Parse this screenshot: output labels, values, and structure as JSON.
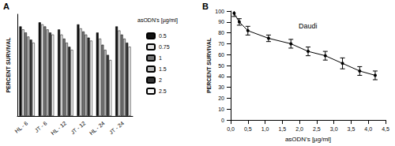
{
  "chart_data": [
    {
      "type": "bar",
      "annotations": [
        "A"
      ],
      "ylabel": "PERCENT SURVIVAL",
      "series_label": "asODN's [µg/ml]",
      "categories": [
        "HL - 6",
        "JT - 6",
        "HL - 12",
        "JT - 12",
        "HL - 24",
        "JT - 24"
      ],
      "series": [
        {
          "name": "0.5",
          "color": "#111111",
          "values": [
            88,
            92,
            85,
            90,
            82,
            88
          ]
        },
        {
          "name": "0.75",
          "color": "#e6e6e6",
          "values": [
            85,
            90,
            80,
            86,
            76,
            84
          ]
        },
        {
          "name": "1",
          "color": "#777777",
          "values": [
            82,
            88,
            76,
            83,
            70,
            80
          ]
        },
        {
          "name": "1.5",
          "color": "#bbbbbb",
          "values": [
            78,
            85,
            72,
            80,
            65,
            76
          ]
        },
        {
          "name": "2",
          "color": "#333333",
          "values": [
            75,
            82,
            68,
            77,
            60,
            72
          ]
        },
        {
          "name": "2.5",
          "color": "#f7f7f7",
          "values": [
            72,
            80,
            65,
            74,
            55,
            68
          ]
        }
      ],
      "ylim": [
        0,
        100
      ],
      "tick_labels": "x"
    },
    {
      "type": "line",
      "annotations": [
        "B"
      ],
      "title": "Daudi",
      "xlabel": "asODN's [µg/ml]",
      "ylabel": "PERCENT SURVIVAL",
      "x": [
        0.1,
        0.25,
        0.5,
        1.1,
        1.75,
        2.25,
        2.75,
        3.25,
        3.75,
        4.2
      ],
      "values": [
        98,
        90,
        82,
        75,
        70,
        63,
        59,
        52,
        45,
        41
      ],
      "errors": [
        3,
        3,
        4,
        3,
        4,
        4,
        4,
        5,
        4,
        4
      ],
      "color": "#000000",
      "marker": "circle",
      "line_style": "solid",
      "xlim": [
        0,
        4.5
      ],
      "xticks": [
        {
          "value": 0,
          "label": "0,0"
        },
        {
          "value": 0.5,
          "label": "0,5"
        },
        {
          "value": 1,
          "label": "1,0"
        },
        {
          "value": 1.5,
          "label": "1,5"
        },
        {
          "value": 2,
          "label": "2,0"
        },
        {
          "value": 2.5,
          "label": "2,5"
        },
        {
          "value": 3,
          "label": "3,0"
        },
        {
          "value": 3.5,
          "label": "3,5"
        },
        {
          "value": 4,
          "label": "4,0"
        },
        {
          "value": 4.5,
          "label": "4,5"
        }
      ],
      "ylim": [
        0,
        100
      ],
      "yticks": [
        0,
        10,
        20,
        30,
        40,
        50,
        60,
        70,
        80,
        90,
        100
      ]
    }
  ]
}
